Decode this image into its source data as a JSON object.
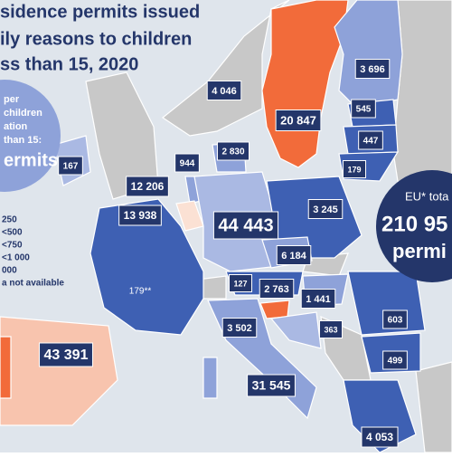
{
  "title": {
    "lines": [
      "sidence permits issued",
      "ily reasons to children",
      "ss than 15, 2020"
    ]
  },
  "legend": {
    "heading": [
      "per",
      "children",
      "ation",
      "than 15:"
    ],
    "unit": "ermits",
    "classes": [
      "250",
      "<500",
      "<750",
      "<1 000",
      "000",
      "a not available"
    ]
  },
  "total": {
    "lines": [
      "EU* tota",
      "210 95",
      "permi"
    ]
  },
  "labels": [
    "4 046",
    "20 847",
    "3 696",
    "545",
    "447",
    "179",
    "167",
    "944",
    "2 830",
    "12 206",
    "13 938",
    "44 443",
    "3 245",
    "6 184",
    "127",
    "2 763",
    "1 441",
    "603",
    "3 502",
    "363",
    "499",
    "43 391",
    "31 545",
    "4 053"
  ],
  "note_label": "179**"
}
